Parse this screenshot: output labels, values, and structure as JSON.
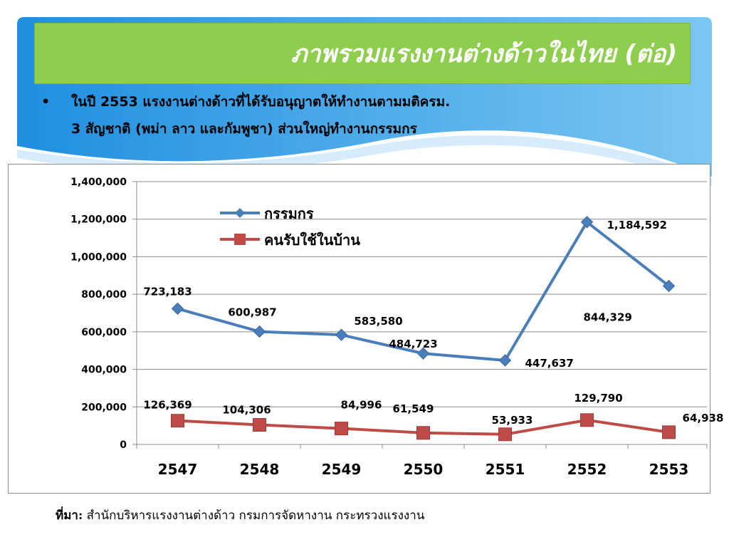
{
  "slide": {
    "title": "ภาพรวมแรงงานต่างด้าวในไทย  (ต่อ)",
    "bullet_lines": [
      "ในปี 2553 แรงงานต่างด้าวที่ได้รับอนุญาตให้ทำงานตามมติครม.",
      "3 สัญชาติ (พม่า ลาว และกัมพูชา) ส่วนใหญ่ทำงานกรรมกร"
    ],
    "bullet_symbol": "•",
    "source_label": "ที่มา:",
    "source_text": " สำนักบริหารแรงงานต่างด้าว กรมการจัดหางาน กระทรวงแรงงาน"
  },
  "chart_data": {
    "type": "line",
    "categories": [
      "2547",
      "2548",
      "2549",
      "2550",
      "2551",
      "2552",
      "2553"
    ],
    "series": [
      {
        "name": "กรรมกร",
        "color": "#4a7ebb",
        "marker": "diamond",
        "values": [
          723183,
          600987,
          583580,
          484723,
          447637,
          1184592,
          844329
        ],
        "labels": [
          "723,183",
          "600,987",
          "583,580",
          "484,723",
          "447,637",
          "1,184,592",
          "844,329"
        ]
      },
      {
        "name": "คนรับใช้ในบ้าน",
        "color": "#be4b48",
        "marker": "square",
        "values": [
          126369,
          104306,
          84996,
          61549,
          53933,
          129790,
          64938
        ],
        "labels": [
          "126,369",
          "104,306",
          "84,996",
          "61,549",
          "53,933",
          "129,790",
          "64,938"
        ]
      }
    ],
    "ylim": [
      0,
      1400000
    ],
    "yticks": [
      0,
      200000,
      400000,
      600000,
      800000,
      1000000,
      1200000,
      1400000
    ],
    "ytick_labels": [
      "0",
      "200,000",
      "400,000",
      "600,000",
      "800,000",
      "1,000,000",
      "1,200,000",
      "1,400,000"
    ],
    "grid": true,
    "legend_position": "top-left"
  }
}
